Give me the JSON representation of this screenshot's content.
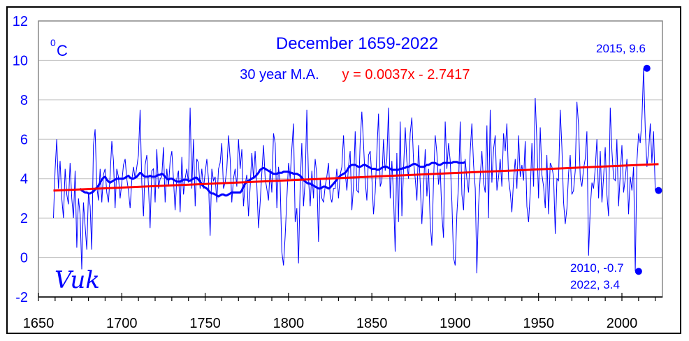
{
  "chart_data": {
    "type": "line",
    "title": "December 1659-2022",
    "subtitle_ma": "30 year M.A.",
    "subtitle_trend": "y = 0.0037x - 2.7417",
    "ylabel_unit": "C",
    "ylabel_degree": "0",
    "signature": "Vuk",
    "xlim": [
      1650,
      2025
    ],
    "ylim": [
      -2,
      12
    ],
    "xticks": [
      1650,
      1700,
      1750,
      1800,
      1850,
      1900,
      1950,
      2000
    ],
    "xtick_labels": [
      "1650",
      "1700",
      "1750",
      "1800",
      "1850",
      "1900",
      "1950",
      "2000"
    ],
    "yticks": [
      -2,
      0,
      2,
      4,
      6,
      8,
      10,
      12
    ],
    "ytick_labels": [
      "-2",
      "0",
      "2",
      "4",
      "6",
      "8",
      "10",
      "12"
    ],
    "grid": "horizontal",
    "colors": {
      "series": "#0000ff",
      "ma": "#0000ff",
      "trend": "#ff0000",
      "grid": "#c0c0c0"
    },
    "x_start": 1659,
    "series": [
      {
        "name": "December mean temperature",
        "values": [
          2.0,
          4.5,
          6.0,
          3.5,
          4.9,
          3.0,
          2.0,
          4.5,
          3.2,
          2.7,
          4.8,
          3.0,
          2.0,
          4.4,
          0.5,
          3.0,
          2.2,
          -0.6,
          2.8,
          1.6,
          0.4,
          3.3,
          2.6,
          0.4,
          5.7,
          6.5,
          3.6,
          2.9,
          4.5,
          2.8,
          4.2,
          4.5,
          3.3,
          2.8,
          4.2,
          5.9,
          4.9,
          2.5,
          4.5,
          4.1,
          3.0,
          3.8,
          4.7,
          5.0,
          4.0,
          3.4,
          2.5,
          3.9,
          4.6,
          4.0,
          4.6,
          5.2,
          7.5,
          3.8,
          2.1,
          4.7,
          5.2,
          3.6,
          1.5,
          4.4,
          4.5,
          2.8,
          5.5,
          3.5,
          4.0,
          4.1,
          5.6,
          2.8,
          4.5,
          3.6,
          4.9,
          5.4,
          4.0,
          2.4,
          4.0,
          4.4,
          2.3,
          5.1,
          3.2,
          4.0,
          4.5,
          3.8,
          7.6,
          3.5,
          6.0,
          2.6,
          5.0,
          4.8,
          3.5,
          4.5,
          3.5,
          4.3,
          5.0,
          4.0,
          1.1,
          4.5,
          3.9,
          4.1,
          2.8,
          4.5,
          4.8,
          5.8,
          3.5,
          3.8,
          4.5,
          6.2,
          5.0,
          2.8,
          4.0,
          4.5,
          3.6,
          6.0,
          4.5,
          5.5,
          2.6,
          3.7,
          4.2,
          2.1,
          3.6,
          5.3,
          4.0,
          5.4,
          3.7,
          1.5,
          2.8,
          4.3,
          5.7,
          4.0,
          3.5,
          2.9,
          4.5,
          3.3,
          6.3,
          5.8,
          2.5,
          4.6,
          3.8,
          0.3,
          -0.4,
          1.1,
          3.0,
          4.8,
          4.0,
          5.5,
          6.8,
          1.8,
          2.5,
          -0.3,
          3.7,
          5.8,
          2.6,
          3.9,
          7.5,
          4.0,
          2.6,
          4.4,
          3.0,
          5.0,
          4.2,
          0.8,
          4.0,
          3.0,
          2.8,
          3.6,
          4.1,
          4.8,
          3.1,
          2.8,
          3.5,
          3.5,
          4.5,
          3.0,
          4.2,
          4.6,
          6.2,
          4.3,
          3.4,
          4.6,
          5.4,
          2.4,
          3.6,
          6.4,
          3.4,
          3.3,
          5.8,
          7.4,
          5.8,
          3.9,
          2.9,
          5.2,
          5.4,
          4.1,
          2.2,
          3.3,
          5.3,
          7.3,
          3.6,
          3.9,
          6.0,
          4.4,
          5.0,
          7.6,
          3.0,
          4.9,
          3.1,
          0.3,
          5.3,
          1.8,
          6.9,
          2.1,
          4.5,
          6.6,
          4.9,
          4.0,
          6.3,
          7.1,
          4.9,
          4.0,
          2.9,
          5.7,
          3.8,
          1.7,
          3.5,
          5.5,
          3.1,
          4.5,
          1.8,
          0.6,
          3.9,
          6.2,
          5.3,
          3.7,
          4.5,
          2.2,
          1.0,
          6.9,
          4.5,
          5.8,
          4.9,
          2.8,
          0.0,
          -0.4,
          2.2,
          3.7,
          6.9,
          3.2,
          2.4,
          5.0,
          4.0,
          3.3,
          5.4,
          6.8,
          4.7,
          3.5,
          -0.8,
          2.6,
          4.1,
          5.4,
          3.8,
          3.3,
          6.7,
          2.0,
          7.5,
          3.8,
          5.5,
          6.2,
          3.4,
          4.1,
          5.0,
          3.6,
          6.3,
          5.4,
          6.8,
          4.0,
          3.3,
          2.3,
          3.9,
          5.0,
          3.5,
          6.2,
          4.1,
          4.7,
          3.9,
          5.9,
          2.6,
          1.8,
          3.3,
          5.8,
          3.6,
          8.1,
          5.9,
          3.0,
          6.6,
          4.2,
          3.6,
          2.5,
          5.2,
          2.2,
          4.8,
          4.6,
          4.1,
          1.2,
          4.0,
          3.9,
          7.5,
          5.6,
          2.8,
          1.7,
          2.5,
          4.3,
          5.2,
          3.2,
          3.4,
          4.4,
          7.9,
          6.7,
          4.0,
          3.6,
          4.5,
          5.0,
          6.4,
          0.1,
          2.5,
          3.8,
          3.5,
          4.5,
          6.0,
          3.0,
          5.4,
          2.8,
          4.1,
          5.6,
          3.2,
          2.1,
          7.6,
          5.4,
          4.0,
          3.9,
          6.0,
          2.6,
          4.2,
          5.7,
          3.3,
          4.0,
          5.0,
          2.2,
          4.1,
          3.4,
          4.6,
          -0.7,
          4.9,
          6.3,
          5.8,
          7.0,
          9.6,
          6.5,
          4.6,
          5.4,
          6.8,
          4.8,
          6.4,
          3.4
        ]
      },
      {
        "name": "30 year M.A.",
        "x_start": 1675,
        "values": [
          3.5,
          3.4,
          3.35,
          3.3,
          3.3,
          3.25,
          3.25,
          3.3,
          3.35,
          3.45,
          3.55,
          3.65,
          3.8,
          3.95,
          4.05,
          4.1,
          3.95,
          3.85,
          3.8,
          3.85,
          3.9,
          3.95,
          4.0,
          4.0,
          4.0,
          4.0,
          4.0,
          4.05,
          4.1,
          4.15,
          4.05,
          4.0,
          4.0,
          4.05,
          4.1,
          4.2,
          4.3,
          4.25,
          4.15,
          4.1,
          4.1,
          4.1,
          4.15,
          4.1,
          4.1,
          4.1,
          4.15,
          4.2,
          4.2,
          4.25,
          4.2,
          4.1,
          4.0,
          3.95,
          4.0,
          4.0,
          3.95,
          3.9,
          3.85,
          3.85,
          3.85,
          3.9,
          3.95,
          3.95,
          3.95,
          3.9,
          3.9,
          3.95,
          4.0,
          4.05,
          4.05,
          3.95,
          3.85,
          3.7,
          3.6,
          3.55,
          3.5,
          3.4,
          3.3,
          3.25,
          3.25,
          3.2,
          3.15,
          3.1,
          3.15,
          3.2,
          3.2,
          3.15,
          3.15,
          3.2,
          3.25,
          3.3,
          3.3,
          3.3,
          3.3,
          3.3,
          3.3,
          3.4,
          3.6,
          3.75,
          3.85,
          3.9,
          3.95,
          4.0,
          4.05,
          4.1,
          4.2,
          4.3,
          4.45,
          4.5,
          4.55,
          4.5,
          4.45,
          4.4,
          4.35,
          4.3,
          4.25,
          4.25,
          4.25,
          4.3,
          4.3,
          4.3,
          4.35,
          4.35,
          4.35,
          4.35,
          4.3,
          4.3,
          4.25,
          4.25,
          4.25,
          4.2,
          4.15,
          4.05,
          3.95,
          3.85,
          3.8,
          3.75,
          3.75,
          3.7,
          3.65,
          3.6,
          3.55,
          3.5,
          3.5,
          3.55,
          3.6,
          3.6,
          3.55,
          3.5,
          3.55,
          3.65,
          3.75,
          3.85,
          3.95,
          4.05,
          4.15,
          4.2,
          4.25,
          4.3,
          4.4,
          4.55,
          4.65,
          4.7,
          4.7,
          4.7,
          4.65,
          4.6,
          4.6,
          4.65,
          4.7,
          4.7,
          4.65,
          4.6,
          4.55,
          4.5,
          4.5,
          4.5,
          4.45,
          4.45,
          4.5,
          4.55,
          4.6,
          4.6,
          4.6,
          4.55,
          4.5,
          4.45,
          4.45,
          4.45,
          4.45,
          4.45,
          4.5,
          4.5,
          4.55,
          4.55,
          4.6,
          4.6,
          4.65,
          4.7,
          4.75,
          4.75,
          4.7,
          4.65,
          4.6,
          4.6,
          4.6,
          4.65,
          4.7,
          4.7,
          4.75,
          4.8,
          4.8,
          4.8,
          4.75,
          4.7,
          4.7,
          4.75,
          4.8,
          4.8,
          4.8,
          4.8,
          4.8,
          4.8,
          4.85,
          4.85,
          4.85,
          4.8,
          4.8,
          4.8,
          4.8,
          4.85
        ]
      }
    ],
    "trend": {
      "slope": 0.0037,
      "intercept": -2.7417,
      "x_range": [
        1659,
        2022
      ]
    },
    "annotations": [
      {
        "label": "2015, 9.6",
        "x": 2015,
        "y": 9.6,
        "marker": true
      },
      {
        "label": "2010, -0.7",
        "x": 2010,
        "y": -0.7,
        "marker": true
      },
      {
        "label": "2022, 3.4",
        "x": 2022,
        "y": 3.4,
        "marker": true
      }
    ]
  }
}
